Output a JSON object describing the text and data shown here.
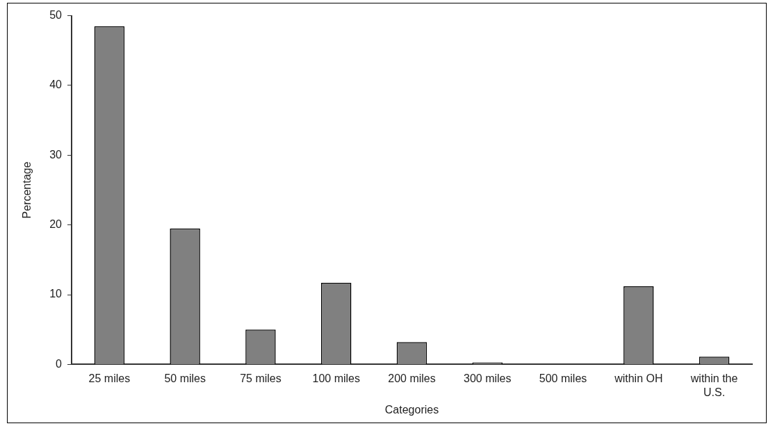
{
  "chart_data": {
    "type": "bar",
    "xlabel": "Categories",
    "ylabel": "Percentage",
    "categories": [
      "25 miles",
      "50 miles",
      "75 miles",
      "100 miles",
      "200 miles",
      "300 miles",
      "500 miles",
      "within OH",
      "within the U.S."
    ],
    "values": [
      48.5,
      19.5,
      5.0,
      11.7,
      3.2,
      0.3,
      0,
      11.2,
      1.1
    ],
    "color": "#808080",
    "ylim": [
      0,
      50
    ],
    "yticks": [
      0,
      10,
      20,
      30,
      40,
      50
    ],
    "grid": false,
    "legend": false
  }
}
